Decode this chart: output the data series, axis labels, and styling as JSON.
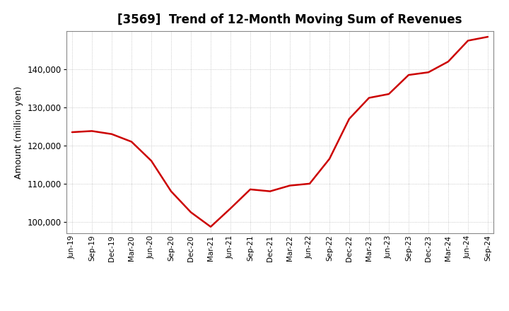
{
  "title": "[3569]  Trend of 12-Month Moving Sum of Revenues",
  "ylabel": "Amount (million yen)",
  "background_color": "#ffffff",
  "plot_bg_color": "#ffffff",
  "line_color": "#cc0000",
  "grid_color": "#aaaaaa",
  "title_fontsize": 12,
  "label_fontsize": 9,
  "tick_labels": [
    "Jun-19",
    "Sep-19",
    "Dec-19",
    "Mar-20",
    "Jun-20",
    "Sep-20",
    "Dec-20",
    "Mar-21",
    "Jun-21",
    "Sep-21",
    "Dec-21",
    "Mar-22",
    "Jun-22",
    "Sep-22",
    "Dec-22",
    "Mar-23",
    "Jun-23",
    "Sep-23",
    "Dec-23",
    "Mar-24",
    "Jun-24",
    "Sep-24"
  ],
  "values": [
    123500,
    123800,
    123000,
    121000,
    116000,
    108000,
    102500,
    98700,
    103500,
    108500,
    108000,
    109500,
    110000,
    116500,
    127000,
    132500,
    133500,
    138500,
    139200,
    142000,
    147500,
    148500
  ],
  "ylim": [
    97000,
    150000
  ],
  "yticks": [
    100000,
    110000,
    120000,
    130000,
    140000
  ]
}
